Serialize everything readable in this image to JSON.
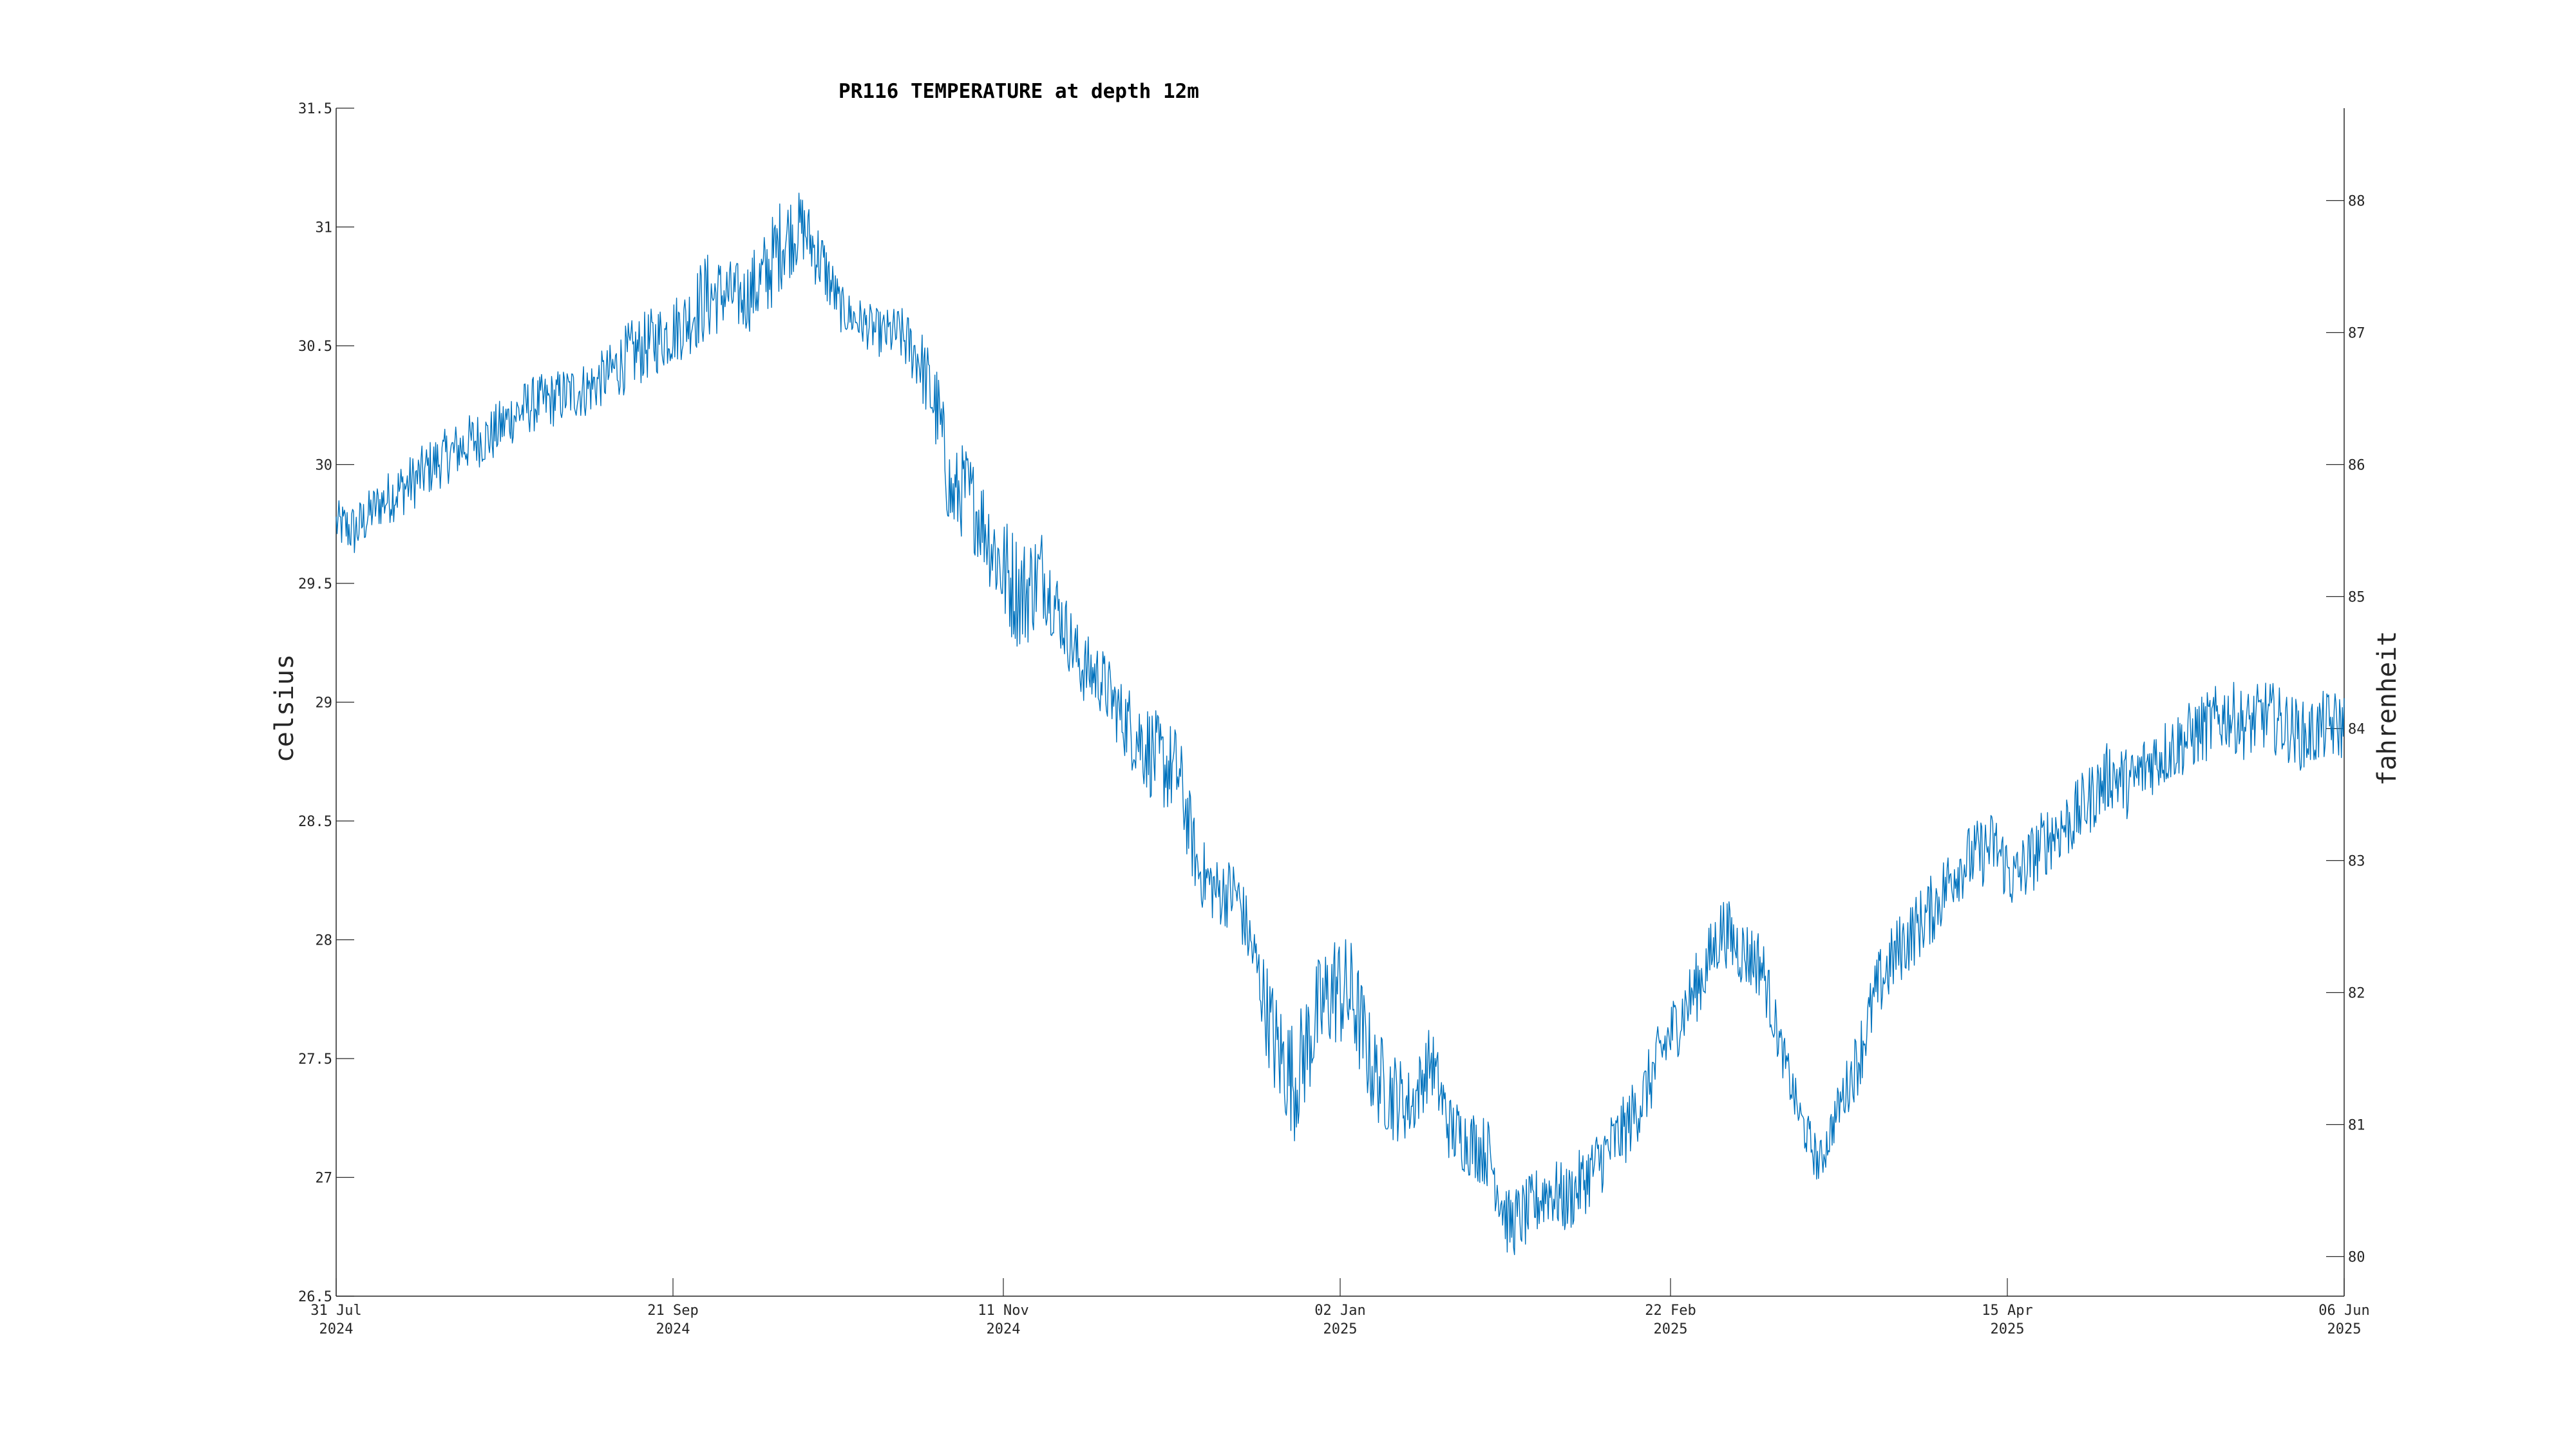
{
  "chart_data": {
    "type": "line",
    "title": "PR116 TEMPERATURE at depth 12m",
    "ylabel": "celsius",
    "y2label": "fahrenheit",
    "xlabel": "",
    "xlim": [
      "2024-07-31",
      "2025-06-06"
    ],
    "ylim": [
      26.5,
      31.5
    ],
    "y2lim": [
      79.7,
      88.7
    ],
    "x_ticks": [
      {
        "date": "2024-07-31",
        "label": "31 Jul",
        "year": "2024"
      },
      {
        "date": "2024-09-21",
        "label": "21 Sep",
        "year": "2024"
      },
      {
        "date": "2024-11-11",
        "label": "11 Nov",
        "year": "2024"
      },
      {
        "date": "2025-01-02",
        "label": "02 Jan",
        "year": "2025"
      },
      {
        "date": "2025-02-22",
        "label": "22 Feb",
        "year": "2025"
      },
      {
        "date": "2025-04-15",
        "label": "15 Apr",
        "year": "2025"
      },
      {
        "date": "2025-06-06",
        "label": "06 Jun",
        "year": "2025"
      }
    ],
    "y_ticks": [
      "26.5",
      "27",
      "27.5",
      "28",
      "28.5",
      "29",
      "29.5",
      "30",
      "30.5",
      "31",
      "31.5"
    ],
    "y2_ticks": [
      "80",
      "81",
      "82",
      "83",
      "84",
      "85",
      "86",
      "87",
      "88"
    ],
    "grid": false,
    "legend": "none",
    "line_color": "#0072BD",
    "series": [
      {
        "x": [
          "2024-07-31",
          "2024-08-03",
          "2024-08-06",
          "2024-08-09",
          "2024-08-12",
          "2024-08-15",
          "2024-08-18",
          "2024-08-21",
          "2024-08-24",
          "2024-08-27",
          "2024-08-30",
          "2024-09-02",
          "2024-09-05",
          "2024-09-08",
          "2024-09-11",
          "2024-09-14",
          "2024-09-17",
          "2024-09-20",
          "2024-09-23",
          "2024-09-26",
          "2024-09-29",
          "2024-10-02",
          "2024-10-05",
          "2024-10-08",
          "2024-10-11",
          "2024-10-14",
          "2024-10-17",
          "2024-10-20",
          "2024-10-23",
          "2024-10-26",
          "2024-10-29",
          "2024-11-01",
          "2024-11-03",
          "2024-11-05",
          "2024-11-08",
          "2024-11-11",
          "2024-11-14",
          "2024-11-17",
          "2024-11-20",
          "2024-11-23",
          "2024-11-26",
          "2024-11-29",
          "2024-12-02",
          "2024-12-05",
          "2024-12-08",
          "2024-12-11",
          "2024-12-14",
          "2024-12-17",
          "2024-12-20",
          "2024-12-23",
          "2024-12-26",
          "2024-12-29",
          "2025-01-01",
          "2025-01-04",
          "2025-01-07",
          "2025-01-10",
          "2025-01-13",
          "2025-01-16",
          "2025-01-19",
          "2025-01-22",
          "2025-01-25",
          "2025-01-28",
          "2025-01-31",
          "2025-02-03",
          "2025-02-06",
          "2025-02-09",
          "2025-02-12",
          "2025-02-15",
          "2025-02-18",
          "2025-02-21",
          "2025-02-24",
          "2025-02-27",
          "2025-03-02",
          "2025-03-05",
          "2025-03-08",
          "2025-03-11",
          "2025-03-14",
          "2025-03-17",
          "2025-03-20",
          "2025-03-23",
          "2025-03-26",
          "2025-03-29",
          "2025-04-01",
          "2025-04-04",
          "2025-04-07",
          "2025-04-10",
          "2025-04-13",
          "2025-04-16",
          "2025-04-19",
          "2025-04-22",
          "2025-04-25",
          "2025-04-28",
          "2025-05-01",
          "2025-05-04",
          "2025-05-07",
          "2025-05-10",
          "2025-05-13",
          "2025-05-16",
          "2025-05-19",
          "2025-05-22",
          "2025-05-25",
          "2025-05-28",
          "2025-05-31",
          "2025-06-03",
          "2025-06-06"
        ],
        "y": [
          29.75,
          29.72,
          29.82,
          29.88,
          29.93,
          30.0,
          30.05,
          30.1,
          30.12,
          30.2,
          30.25,
          30.27,
          30.3,
          30.32,
          30.38,
          30.45,
          30.5,
          30.55,
          30.6,
          30.7,
          30.72,
          30.7,
          30.78,
          30.95,
          31.0,
          30.85,
          30.65,
          30.6,
          30.55,
          30.55,
          30.45,
          30.2,
          29.85,
          29.9,
          29.75,
          29.55,
          29.45,
          29.55,
          29.35,
          29.15,
          29.1,
          28.95,
          28.85,
          28.75,
          28.7,
          28.3,
          28.2,
          28.2,
          27.9,
          27.55,
          27.4,
          27.65,
          27.8,
          27.75,
          27.45,
          27.35,
          27.3,
          27.5,
          27.2,
          27.15,
          27.1,
          26.8,
          26.85,
          26.95,
          26.9,
          27.0,
          27.1,
          27.2,
          27.35,
          27.55,
          27.7,
          27.85,
          28.05,
          27.95,
          27.9,
          27.55,
          27.25,
          27.05,
          27.3,
          27.5,
          27.8,
          27.95,
          28.05,
          28.15,
          28.3,
          28.35,
          28.4,
          28.25,
          28.35,
          28.45,
          28.5,
          28.6,
          28.7,
          28.65,
          28.75,
          28.8,
          28.85,
          28.9,
          28.95,
          28.9,
          28.95,
          28.9,
          28.85,
          28.9,
          28.9
        ],
        "noise": [
          0.1,
          0.12,
          0.1,
          0.12,
          0.12,
          0.12,
          0.12,
          0.12,
          0.12,
          0.12,
          0.12,
          0.12,
          0.12,
          0.12,
          0.12,
          0.15,
          0.15,
          0.15,
          0.15,
          0.2,
          0.15,
          0.15,
          0.2,
          0.2,
          0.15,
          0.15,
          0.1,
          0.1,
          0.1,
          0.12,
          0.15,
          0.2,
          0.2,
          0.2,
          0.2,
          0.25,
          0.25,
          0.2,
          0.15,
          0.15,
          0.15,
          0.15,
          0.2,
          0.2,
          0.2,
          0.15,
          0.15,
          0.15,
          0.15,
          0.25,
          0.25,
          0.25,
          0.25,
          0.25,
          0.2,
          0.2,
          0.15,
          0.15,
          0.15,
          0.15,
          0.15,
          0.15,
          0.15,
          0.15,
          0.15,
          0.15,
          0.15,
          0.15,
          0.15,
          0.15,
          0.15,
          0.15,
          0.15,
          0.15,
          0.15,
          0.1,
          0.1,
          0.1,
          0.1,
          0.15,
          0.15,
          0.15,
          0.15,
          0.15,
          0.15,
          0.15,
          0.15,
          0.15,
          0.15,
          0.15,
          0.15,
          0.15,
          0.15,
          0.15,
          0.15,
          0.15,
          0.15,
          0.15,
          0.15,
          0.15,
          0.15,
          0.15,
          0.15,
          0.15,
          0.15
        ]
      }
    ]
  }
}
